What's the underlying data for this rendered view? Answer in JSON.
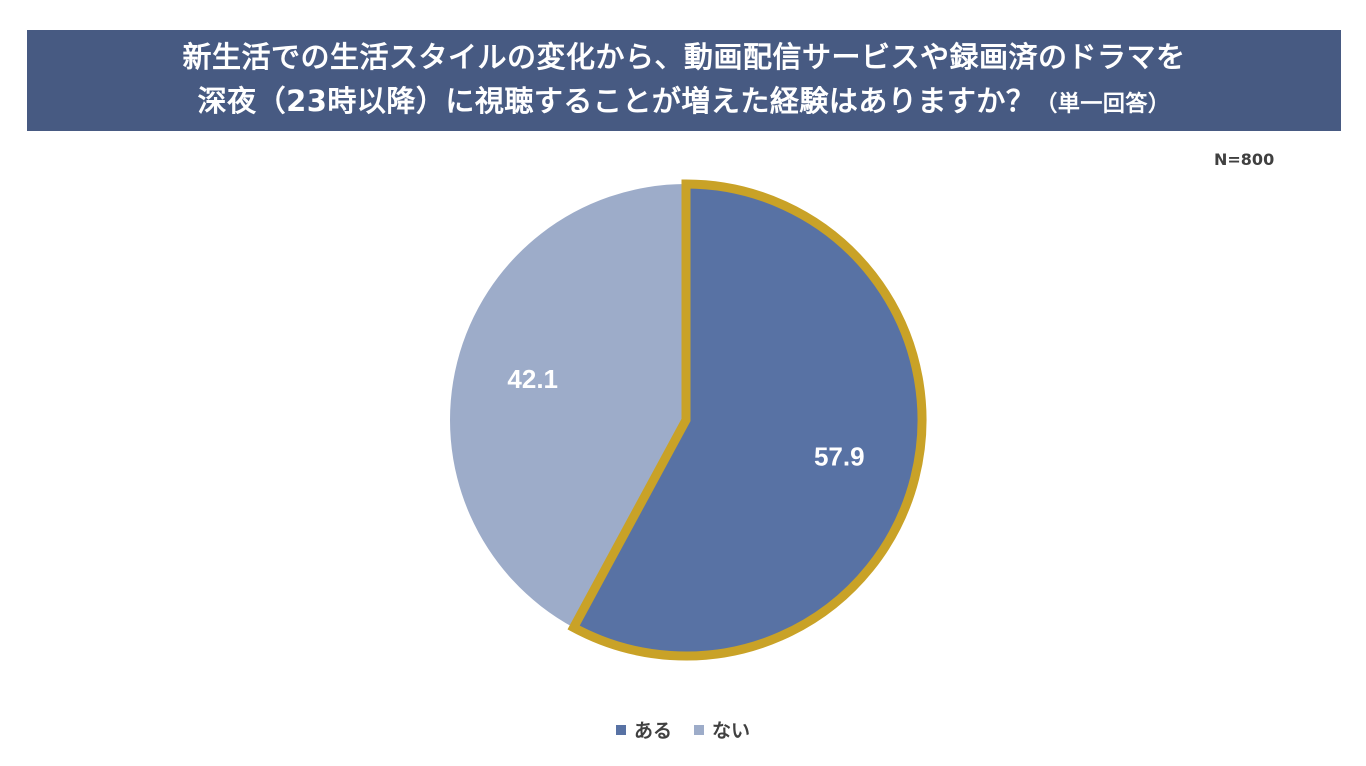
{
  "title": {
    "line1": "新生活での生活スタイルの変化から、動画配信サービスや録画済のドラマを",
    "line2": "深夜（23時以降）に視聴することが増えた経験はありますか？",
    "note": "（単一回答）"
  },
  "sample_size": "N=800",
  "colors": {
    "banner": "#475a82",
    "highlight_border": "#c9a227"
  },
  "chart_data": {
    "type": "pie",
    "start_angle_deg": 0,
    "direction": "clockwise",
    "slices": [
      {
        "label": "ある",
        "value": 57.9,
        "display": "57.9",
        "color": "#5872a4",
        "highlighted": true
      },
      {
        "label": "ない",
        "value": 42.1,
        "display": "42.1",
        "color": "#9dacc9",
        "highlighted": false
      }
    ],
    "legend_position": "bottom"
  }
}
